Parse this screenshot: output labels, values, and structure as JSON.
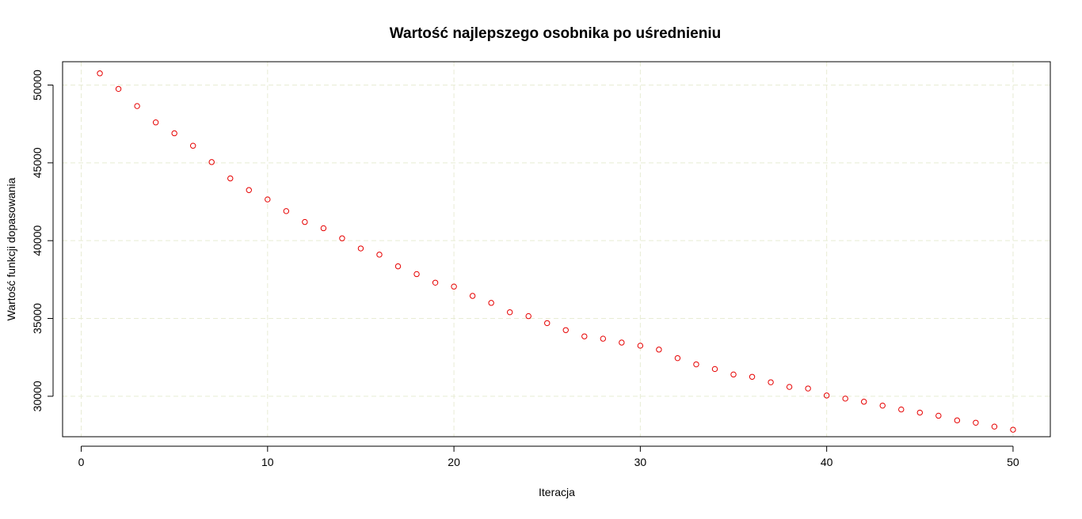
{
  "chart_data": {
    "type": "scatter",
    "title": "Wartość najlepszego osobnika po uśrednieniu",
    "xlabel": "Iteracja",
    "ylabel": "Wartość funkcji dopasowania",
    "xlim": [
      -1,
      52
    ],
    "ylim": [
      27400,
      51500
    ],
    "xticks": [
      0,
      10,
      20,
      30,
      40,
      50
    ],
    "yticks": [
      30000,
      35000,
      40000,
      45000,
      50000
    ],
    "grid": true,
    "point_color": "#e60000",
    "grid_color": "#e8ecd4",
    "series": [
      {
        "x": [
          1,
          2,
          3,
          4,
          5,
          6,
          7,
          8,
          9,
          10,
          11,
          12,
          13,
          14,
          15,
          16,
          17,
          18,
          19,
          20,
          21,
          22,
          23,
          24,
          25,
          26,
          27,
          28,
          29,
          30,
          31,
          32,
          33,
          34,
          35,
          36,
          37,
          38,
          39,
          40,
          41,
          42,
          43,
          44,
          45,
          46,
          47,
          48,
          49,
          50
        ],
        "y": [
          50750,
          49750,
          48650,
          47600,
          46900,
          46100,
          45050,
          44000,
          43250,
          42650,
          41900,
          41200,
          40800,
          40150,
          39500,
          39100,
          38350,
          37850,
          37300,
          37050,
          36450,
          36000,
          35400,
          35150,
          34700,
          34250,
          33850,
          33700,
          33450,
          33250,
          33000,
          32450,
          32050,
          31750,
          31400,
          31250,
          30900,
          30600,
          30500,
          30050,
          29850,
          29650,
          29400,
          29150,
          28950,
          28750,
          28450,
          28300,
          28050,
          27850
        ]
      }
    ]
  }
}
